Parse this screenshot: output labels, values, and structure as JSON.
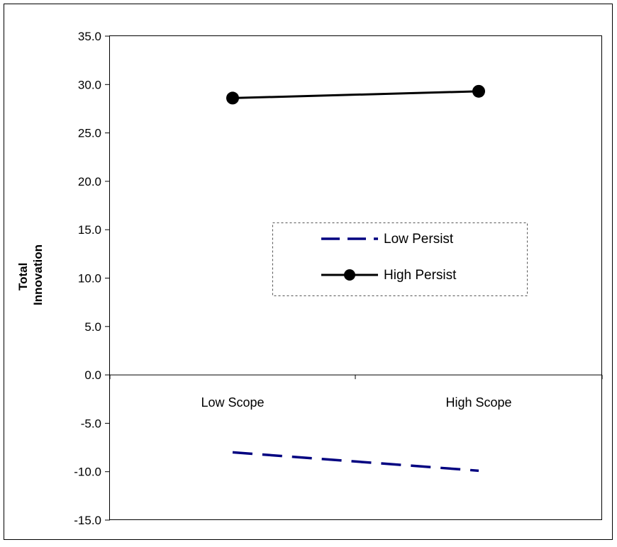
{
  "chart_data": {
    "type": "line",
    "title": "",
    "xlabel": "",
    "ylabel": "Total\nInnovation",
    "categories": [
      "Low Scope",
      "High Scope"
    ],
    "ylim": [
      -15,
      35
    ],
    "y_tick_step": 5,
    "y_tick_labels": [
      "35.0",
      "30.0",
      "25.0",
      "20.0",
      "15.0",
      "10.0",
      "5.0",
      "0.0",
      "-5.0",
      "-10.0",
      "-15.0"
    ],
    "grid": false,
    "legend_position": "center-right",
    "series": [
      {
        "name": "Low Persist",
        "values": [
          -8.0,
          -9.9
        ],
        "color": "#000080",
        "style": "dashed",
        "marker": "none"
      },
      {
        "name": "High Persist",
        "values": [
          28.6,
          29.3
        ],
        "color": "#000000",
        "style": "solid",
        "marker": "circle"
      }
    ]
  }
}
